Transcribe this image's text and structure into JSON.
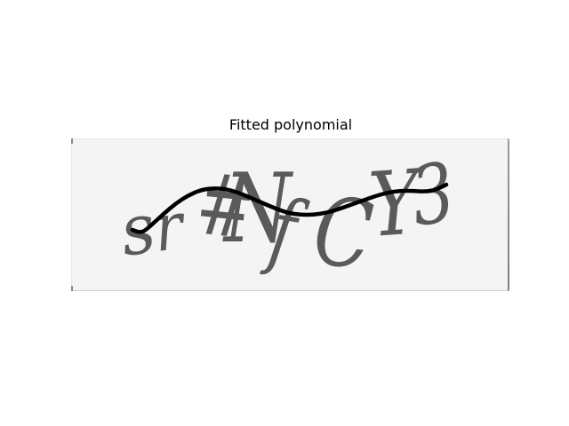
{
  "figure": {
    "title": "Fitted polynomial"
  },
  "captcha": {
    "text": "sr#NfCY3",
    "glyphs": [
      "s",
      "r",
      "#",
      "N",
      "f",
      "C",
      "Y",
      "3"
    ],
    "glyph_color": "#5a5a5a",
    "background_color": "#f4f4f4"
  },
  "fitted_curve": {
    "color": "#000000"
  }
}
